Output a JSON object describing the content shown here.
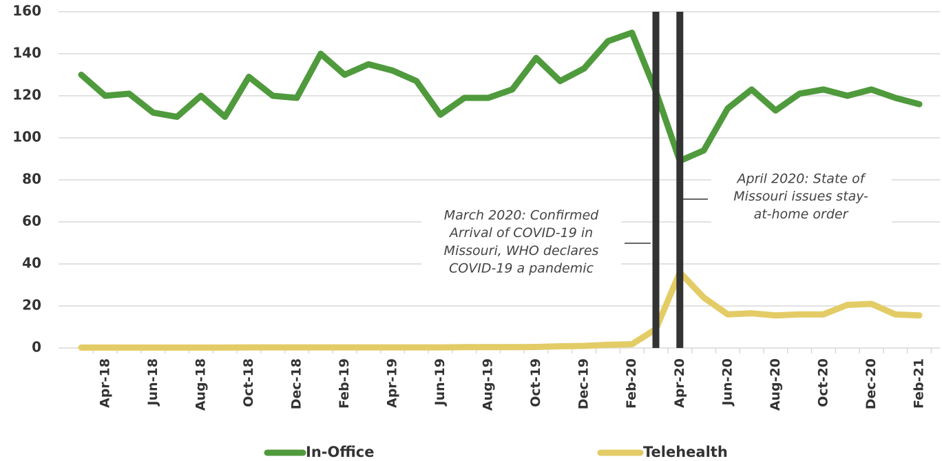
{
  "chart_data": {
    "type": "line",
    "categories": [
      null,
      "Apr-18",
      null,
      "Jun-18",
      null,
      "Aug-18",
      null,
      "Oct-18",
      null,
      "Dec-18",
      null,
      "Feb-19",
      null,
      "Apr-19",
      null,
      "Jun-19",
      null,
      "Aug-19",
      null,
      "Oct-19",
      null,
      "Dec-19",
      null,
      "Feb-20",
      null,
      "Apr-20",
      null,
      "Jun-20",
      null,
      "Aug-20",
      null,
      "Oct-20",
      null,
      "Dec-20",
      null,
      "Feb-21"
    ],
    "series": [
      {
        "name": "In-Office",
        "color": "#4f9a3c",
        "values": [
          130,
          120,
          121,
          112,
          110,
          120,
          110,
          129,
          120,
          119,
          140,
          130,
          135,
          132,
          127,
          111,
          119,
          119,
          123,
          138,
          127,
          133,
          146,
          150,
          122,
          89,
          94,
          114,
          123,
          113,
          121,
          123,
          120,
          123,
          119,
          116
        ]
      },
      {
        "name": "Telehealth",
        "color": "#e3cc66",
        "values": [
          0.2,
          0.2,
          0.2,
          0.2,
          0.2,
          0.2,
          0.2,
          0.3,
          0.3,
          0.3,
          0.3,
          0.3,
          0.3,
          0.3,
          0.3,
          0.3,
          0.4,
          0.4,
          0.4,
          0.5,
          0.8,
          1,
          1.5,
          1.8,
          9,
          36,
          24,
          16,
          16.5,
          15.5,
          16,
          16,
          20.5,
          21,
          16,
          15.5
        ]
      }
    ],
    "ylim": [
      0,
      160
    ],
    "yticks": [
      0,
      20,
      40,
      60,
      80,
      100,
      120,
      140,
      160
    ],
    "grid": true,
    "annotations": [
      {
        "lines": [
          "March 2020: Confirmed",
          "Arrival of COVID-19 in",
          "Missouri, WHO declares",
          "COVID-19 a pandemic"
        ]
      },
      {
        "lines": [
          "April 2020: State of",
          "Missouri issues stay-",
          "at-home order"
        ]
      }
    ],
    "legend": "bottom"
  }
}
